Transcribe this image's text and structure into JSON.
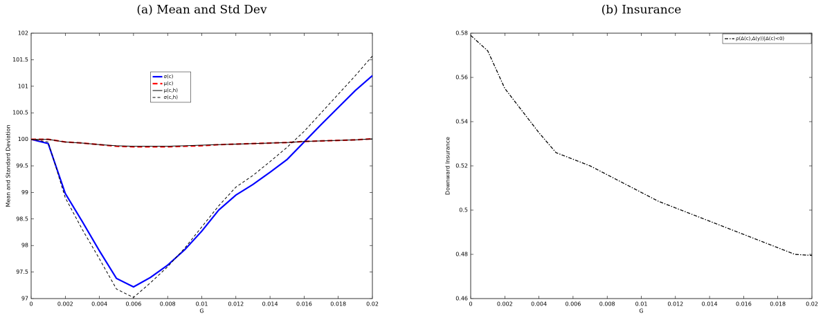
{
  "chart_data": [
    {
      "type": "line",
      "title": "(a) Mean and Std Dev",
      "x_label": "G",
      "y_label": "Mean and Standard Deviation",
      "x": [
        0,
        0.001,
        0.002,
        0.003,
        0.004,
        0.005,
        0.006,
        0.007,
        0.008,
        0.009,
        0.01,
        0.011,
        0.012,
        0.013,
        0.014,
        0.015,
        0.016,
        0.017,
        0.018,
        0.019,
        0.02
      ],
      "xlim": [
        0,
        0.02
      ],
      "xticks": [
        0,
        0.002,
        0.004,
        0.006,
        0.008,
        0.01,
        0.012,
        0.014,
        0.016,
        0.018,
        0.02
      ],
      "ylim": [
        97,
        102
      ],
      "yticks": [
        97,
        97.5,
        98,
        98.5,
        99,
        99.5,
        100,
        100.5,
        101,
        101.5,
        102
      ],
      "legend": "upper center",
      "series": [
        {
          "name": "σ(c)",
          "color": "#0000ff",
          "style": "solid-thick",
          "values": [
            100,
            99.92,
            98.98,
            98.45,
            97.9,
            97.38,
            97.22,
            97.4,
            97.63,
            97.92,
            98.27,
            98.67,
            98.95,
            99.15,
            99.38,
            99.62,
            99.95,
            100.28,
            100.6,
            100.92,
            101.2
          ]
        },
        {
          "name": "μ(c)",
          "color": "#ff0000",
          "style": "dashed-thick",
          "values": [
            100,
            100,
            99.95,
            99.93,
            99.9,
            99.87,
            99.86,
            99.86,
            99.86,
            99.87,
            99.88,
            99.9,
            99.91,
            99.92,
            99.93,
            99.94,
            99.96,
            99.97,
            99.98,
            99.99,
            100.01
          ]
        },
        {
          "name": "μ(c,h)",
          "color": "#000000",
          "style": "solid",
          "values": [
            100,
            100,
            99.95,
            99.93,
            99.9,
            99.88,
            99.87,
            99.87,
            99.87,
            99.88,
            99.89,
            99.9,
            99.91,
            99.92,
            99.93,
            99.94,
            99.96,
            99.97,
            99.98,
            99.99,
            100.01
          ]
        },
        {
          "name": "σ(c,h)",
          "color": "#000000",
          "style": "dashed",
          "values": [
            100,
            99.95,
            98.9,
            98.3,
            97.75,
            97.18,
            97.02,
            97.3,
            97.6,
            97.95,
            98.35,
            98.75,
            99.1,
            99.32,
            99.58,
            99.85,
            100.15,
            100.5,
            100.85,
            101.2,
            101.57
          ]
        }
      ]
    },
    {
      "type": "line",
      "title": "(b) Insurance",
      "x_label": "G",
      "y_label": "Downward Insurance",
      "x": [
        0,
        0.001,
        0.002,
        0.003,
        0.004,
        0.005,
        0.006,
        0.007,
        0.008,
        0.009,
        0.01,
        0.011,
        0.012,
        0.013,
        0.014,
        0.015,
        0.016,
        0.017,
        0.018,
        0.019,
        0.02
      ],
      "xlim": [
        0,
        0.02
      ],
      "xticks": [
        0,
        0.002,
        0.004,
        0.006,
        0.008,
        0.01,
        0.012,
        0.014,
        0.016,
        0.018,
        0.02
      ],
      "ylim": [
        0.46,
        0.58
      ],
      "yticks": [
        0.46,
        0.48,
        0.5,
        0.52,
        0.54,
        0.56,
        0.58
      ],
      "legend": "upper right",
      "series": [
        {
          "name": "ρ(Δ(c),Δ(y))|Δ(c)<0)",
          "color": "#000000",
          "style": "dashdot",
          "values": [
            0.579,
            0.572,
            0.555,
            0.545,
            0.535,
            0.526,
            0.523,
            0.52,
            0.516,
            0.512,
            0.508,
            0.504,
            0.501,
            0.498,
            0.495,
            0.492,
            0.489,
            0.486,
            0.483,
            0.48,
            0.4795
          ]
        }
      ]
    }
  ]
}
